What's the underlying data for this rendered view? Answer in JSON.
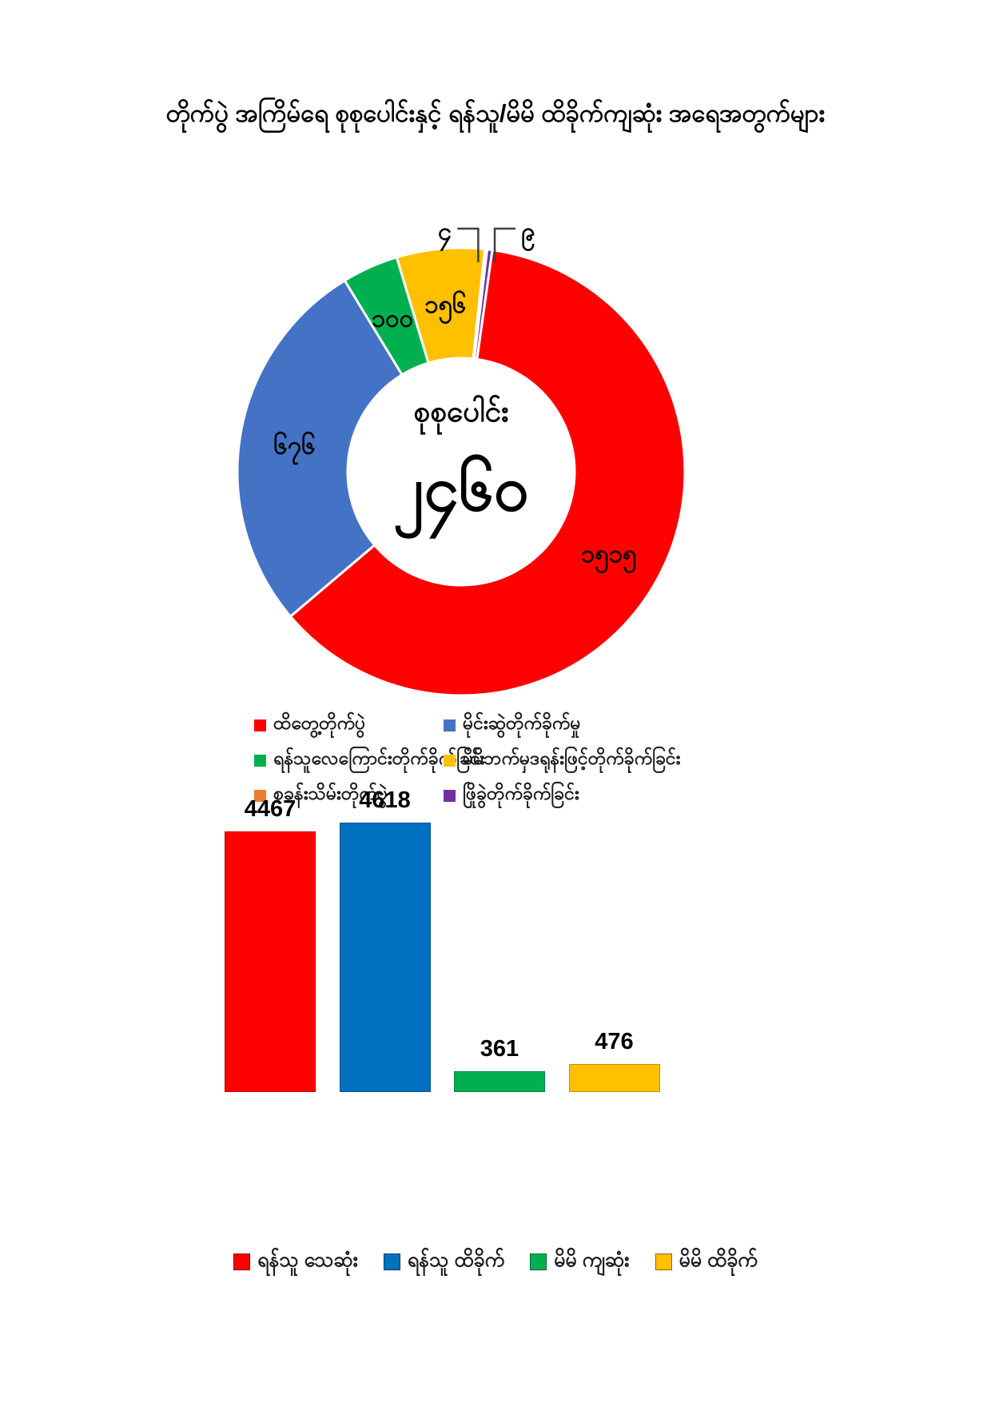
{
  "page": {
    "background": "#ffffff"
  },
  "title": "တိုက်ပွဲ အကြိမ်ရေ စုစုပေါင်းနှင့် ရန်သူ/မိမိ ထိခိုက်ကျဆုံး အရေအတွက်များ",
  "chart_data": [
    {
      "type": "pie",
      "subtype": "donut",
      "center_label": "စုစုပေါင်း",
      "center_value": 2460,
      "center_value_text": "၂၄၆၀",
      "rotation_deg": 8,
      "legend_position": "bottom",
      "legend_columns": 2,
      "series": [
        {
          "name": "ထိတွေ့တိုက်ပွဲ",
          "value": 1515,
          "value_text": "၁၅၁၅",
          "color": "#FF0000",
          "label_placement": "inside"
        },
        {
          "name": "မိုင်းဆွဲတိုက်ခိုက်မှု",
          "value": 676,
          "value_text": "၆၇၆",
          "color": "#4472C4",
          "label_placement": "inside"
        },
        {
          "name": "ရန်သူလေကြောင်းတိုက်ခိုက်ခြင်း",
          "value": 100,
          "value_text": "၁၀၀",
          "color": "#00B050",
          "label_placement": "inside"
        },
        {
          "name": "မိမိဘက်မှဒရုန်းဖြင့်တိုက်ခိုက်ခြင်း",
          "value": 156,
          "value_text": "၁၅၆",
          "color": "#FFC000",
          "label_placement": "inside"
        },
        {
          "name": "စခန်းသိမ်းတိုက်ပွဲ",
          "value": 4,
          "value_text": "၄",
          "color": "#ED7D31",
          "label_placement": "callout-left"
        },
        {
          "name": "ဖြိုခွဲတိုက်ခိုက်ခြင်း",
          "value": 9,
          "value_text": "၉",
          "color": "#7030A0",
          "label_placement": "callout-right"
        }
      ]
    },
    {
      "type": "bar",
      "categories": [
        "ရန်သူ သေဆုံး",
        "ရန်သူ ထိခိုက်",
        "မိမိ ကျဆုံး",
        "မိမိ ထိခိုက်"
      ],
      "values": [
        4467,
        4618,
        361,
        476
      ],
      "value_labels": [
        "4467",
        "4618",
        "361",
        "476"
      ],
      "colors": [
        "#FF0000",
        "#0070C0",
        "#00B050",
        "#FFC000"
      ],
      "ylim": [
        0,
        4618
      ],
      "gridlines": false,
      "data_labels": true,
      "legend_position": "bottom"
    }
  ]
}
